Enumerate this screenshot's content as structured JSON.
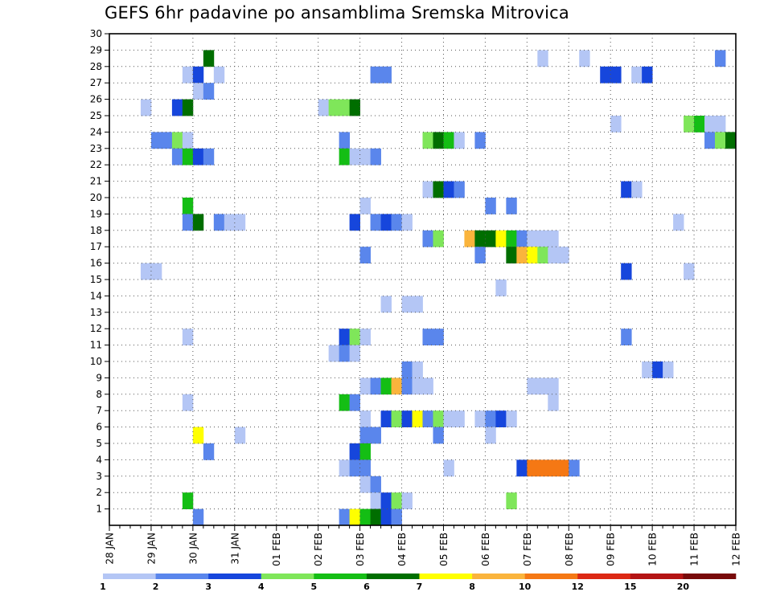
{
  "chart_data": {
    "type": "heatmap",
    "title": "GEFS 6hr padavine po ansamblima Sremska Mitrovica",
    "xlabel": "",
    "ylabel": "",
    "x_tick_labels": [
      "28 JAN",
      "29 JAN",
      "30 JAN",
      "31 JAN",
      "01 FEB",
      "02 FEB",
      "03 FEB",
      "04 FEB",
      "05 FEB",
      "06 FEB",
      "07 FEB",
      "08 FEB",
      "09 FEB",
      "10 FEB",
      "11 FEB",
      "12 FEB"
    ],
    "y_range": [
      0,
      30
    ],
    "y_ticks": [
      1,
      2,
      3,
      4,
      5,
      6,
      7,
      8,
      9,
      10,
      11,
      12,
      13,
      14,
      15,
      16,
      17,
      18,
      19,
      20,
      21,
      22,
      23,
      24,
      25,
      26,
      27,
      28,
      29,
      30
    ],
    "x_steps_per_day": 4,
    "n_steps": 60,
    "grid": true,
    "colorbar": {
      "labels": [
        "1",
        "2",
        "3",
        "4",
        "5",
        "6",
        "7",
        "8",
        "10",
        "12",
        "15",
        "20"
      ],
      "colors": [
        "#b4c6f5",
        "#5a86ec",
        "#1646dc",
        "#7fe65a",
        "#14be14",
        "#006e00",
        "#ffff00",
        "#fab43c",
        "#f57814",
        "#dc2814",
        "#b41414",
        "#780a0a"
      ]
    },
    "cells": [
      [
        9,
        29,
        6
      ],
      [
        41,
        29,
        1
      ],
      [
        45,
        29,
        1
      ],
      [
        58,
        29,
        2
      ],
      [
        7,
        28,
        1
      ],
      [
        8,
        28,
        3
      ],
      [
        10,
        28,
        1
      ],
      [
        25,
        28,
        2
      ],
      [
        26,
        28,
        2
      ],
      [
        47,
        28,
        3
      ],
      [
        48,
        28,
        3
      ],
      [
        50,
        28,
        1
      ],
      [
        51,
        28,
        3
      ],
      [
        8,
        27,
        1
      ],
      [
        9,
        27,
        2
      ],
      [
        3,
        26,
        1
      ],
      [
        6,
        26,
        3
      ],
      [
        7,
        26,
        6
      ],
      [
        20,
        26,
        1
      ],
      [
        21,
        26,
        4
      ],
      [
        22,
        26,
        4
      ],
      [
        23,
        26,
        6
      ],
      [
        48,
        25,
        1
      ],
      [
        55,
        25,
        4
      ],
      [
        56,
        25,
        5
      ],
      [
        57,
        25,
        1
      ],
      [
        58,
        25,
        1
      ],
      [
        4,
        24,
        2
      ],
      [
        5,
        24,
        2
      ],
      [
        6,
        24,
        4
      ],
      [
        7,
        24,
        1
      ],
      [
        22,
        24,
        2
      ],
      [
        30,
        24,
        4
      ],
      [
        31,
        24,
        6
      ],
      [
        32,
        24,
        5
      ],
      [
        33,
        24,
        1
      ],
      [
        35,
        24,
        2
      ],
      [
        57,
        24,
        2
      ],
      [
        58,
        24,
        4
      ],
      [
        59,
        24,
        6
      ],
      [
        6,
        23,
        2
      ],
      [
        7,
        23,
        5
      ],
      [
        8,
        23,
        3
      ],
      [
        9,
        23,
        2
      ],
      [
        22,
        23,
        5
      ],
      [
        23,
        23,
        1
      ],
      [
        24,
        23,
        1
      ],
      [
        25,
        23,
        2
      ],
      [
        30,
        21,
        1
      ],
      [
        31,
        21,
        6
      ],
      [
        32,
        21,
        3
      ],
      [
        33,
        21,
        2
      ],
      [
        49,
        21,
        3
      ],
      [
        50,
        21,
        1
      ],
      [
        7,
        20,
        5
      ],
      [
        24,
        20,
        1
      ],
      [
        36,
        20,
        2
      ],
      [
        38,
        20,
        2
      ],
      [
        7,
        19,
        2
      ],
      [
        8,
        19,
        6
      ],
      [
        10,
        19,
        2
      ],
      [
        11,
        19,
        1
      ],
      [
        12,
        19,
        1
      ],
      [
        23,
        19,
        3
      ],
      [
        25,
        19,
        2
      ],
      [
        26,
        19,
        3
      ],
      [
        27,
        19,
        2
      ],
      [
        28,
        19,
        1
      ],
      [
        54,
        19,
        1
      ],
      [
        30,
        18,
        2
      ],
      [
        31,
        18,
        4
      ],
      [
        34,
        18,
        8
      ],
      [
        35,
        18,
        6
      ],
      [
        36,
        18,
        6
      ],
      [
        37,
        18,
        7
      ],
      [
        38,
        18,
        5
      ],
      [
        39,
        18,
        2
      ],
      [
        40,
        18,
        1
      ],
      [
        41,
        18,
        1
      ],
      [
        42,
        18,
        1
      ],
      [
        24,
        17,
        2
      ],
      [
        35,
        17,
        2
      ],
      [
        38,
        17,
        6
      ],
      [
        39,
        17,
        8
      ],
      [
        40,
        17,
        7
      ],
      [
        41,
        17,
        4
      ],
      [
        42,
        17,
        1
      ],
      [
        43,
        17,
        1
      ],
      [
        3,
        16,
        1
      ],
      [
        4,
        16,
        1
      ],
      [
        49,
        16,
        3
      ],
      [
        55,
        16,
        1
      ],
      [
        37,
        15,
        1
      ],
      [
        26,
        14,
        1
      ],
      [
        28,
        14,
        1
      ],
      [
        29,
        14,
        1
      ],
      [
        7,
        12,
        1
      ],
      [
        22,
        12,
        3
      ],
      [
        23,
        12,
        4
      ],
      [
        24,
        12,
        1
      ],
      [
        30,
        12,
        2
      ],
      [
        31,
        12,
        2
      ],
      [
        49,
        12,
        2
      ],
      [
        21,
        11,
        1
      ],
      [
        22,
        11,
        2
      ],
      [
        23,
        11,
        1
      ],
      [
        28,
        10,
        2
      ],
      [
        29,
        10,
        1
      ],
      [
        51,
        10,
        1
      ],
      [
        52,
        10,
        3
      ],
      [
        53,
        10,
        1
      ],
      [
        24,
        9,
        1
      ],
      [
        25,
        9,
        2
      ],
      [
        26,
        9,
        5
      ],
      [
        27,
        9,
        8
      ],
      [
        28,
        9,
        2
      ],
      [
        29,
        9,
        1
      ],
      [
        30,
        9,
        1
      ],
      [
        40,
        9,
        1
      ],
      [
        41,
        9,
        1
      ],
      [
        42,
        9,
        1
      ],
      [
        7,
        8,
        1
      ],
      [
        22,
        8,
        5
      ],
      [
        23,
        8,
        2
      ],
      [
        42,
        8,
        1
      ],
      [
        24,
        7,
        1
      ],
      [
        26,
        7,
        3
      ],
      [
        27,
        7,
        4
      ],
      [
        28,
        7,
        3
      ],
      [
        29,
        7,
        7
      ],
      [
        30,
        7,
        2
      ],
      [
        31,
        7,
        4
      ],
      [
        32,
        7,
        1
      ],
      [
        33,
        7,
        1
      ],
      [
        35,
        7,
        1
      ],
      [
        36,
        7,
        2
      ],
      [
        37,
        7,
        3
      ],
      [
        38,
        7,
        1
      ],
      [
        8,
        6,
        7
      ],
      [
        12,
        6,
        1
      ],
      [
        24,
        6,
        2
      ],
      [
        25,
        6,
        2
      ],
      [
        31,
        6,
        2
      ],
      [
        36,
        6,
        1
      ],
      [
        9,
        5,
        2
      ],
      [
        23,
        5,
        3
      ],
      [
        24,
        5,
        5
      ],
      [
        22,
        4,
        1
      ],
      [
        23,
        4,
        2
      ],
      [
        24,
        4,
        2
      ],
      [
        32,
        4,
        1
      ],
      [
        39,
        4,
        3
      ],
      [
        40,
        4,
        9
      ],
      [
        41,
        4,
        9
      ],
      [
        42,
        4,
        9
      ],
      [
        43,
        4,
        9
      ],
      [
        44,
        4,
        2
      ],
      [
        24,
        3,
        1
      ],
      [
        25,
        3,
        2
      ],
      [
        7,
        2,
        5
      ],
      [
        25,
        2,
        1
      ],
      [
        26,
        2,
        3
      ],
      [
        27,
        2,
        4
      ],
      [
        28,
        2,
        1
      ],
      [
        38,
        2,
        4
      ],
      [
        8,
        1,
        2
      ],
      [
        22,
        1,
        2
      ],
      [
        23,
        1,
        7
      ],
      [
        24,
        1,
        5
      ],
      [
        25,
        1,
        6
      ],
      [
        26,
        1,
        3
      ],
      [
        27,
        1,
        2
      ]
    ]
  }
}
